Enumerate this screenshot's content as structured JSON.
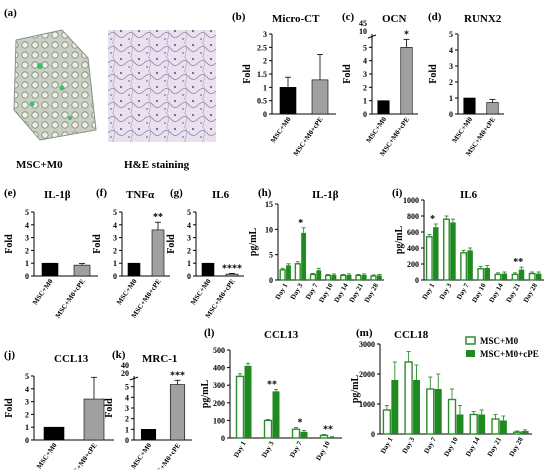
{
  "images": {
    "letter": "(a)",
    "left_caption": "MSC+M0",
    "right_caption": "H&E staining"
  },
  "legend": {
    "items": [
      {
        "label": "MSC+M0",
        "color": "#ffffff",
        "stroke": "#2e8b2e"
      },
      {
        "label": "MSC+M0+cPE",
        "color": "#1f8a1f",
        "stroke": "#1f8a1f"
      }
    ]
  },
  "chart_data": [
    {
      "id": "b",
      "letter": "(b)",
      "type": "bar",
      "title": "Micro-CT",
      "ylabel": "Fold",
      "categories": [
        "MSC+M0",
        "MSC+M0+cPE"
      ],
      "values": [
        1.0,
        1.28
      ],
      "errors": [
        0.38,
        0.95
      ],
      "colors": [
        "#000000",
        "#a0a0a0"
      ],
      "ylim": [
        0,
        3
      ],
      "yticks": [
        0,
        0.5,
        1,
        1.5,
        2,
        2.5,
        3
      ],
      "sig": [
        "",
        ""
      ]
    },
    {
      "id": "c",
      "letter": "(c)",
      "type": "bar",
      "title": "OCN",
      "ylabel": "Fold",
      "categories": [
        "MSC+M0",
        "MSC+M0+cPE"
      ],
      "values": [
        1.0,
        5.0
      ],
      "errors": [
        0,
        0.6
      ],
      "colors": [
        "#000000",
        "#a0a0a0"
      ],
      "ylim": [
        0,
        6
      ],
      "yticks": [
        0,
        1,
        2,
        3,
        4,
        5
      ],
      "break_labels": [
        "45",
        "10"
      ],
      "sig": [
        "",
        "*"
      ]
    },
    {
      "id": "d",
      "letter": "(d)",
      "type": "bar",
      "title": "RUNX2",
      "ylabel": "Fold",
      "categories": [
        "MSC+M0",
        "MSC+M0+cPE"
      ],
      "values": [
        1.0,
        0.72
      ],
      "errors": [
        0,
        0.18
      ],
      "colors": [
        "#000000",
        "#a0a0a0"
      ],
      "ylim": [
        0,
        5
      ],
      "yticks": [
        0,
        1,
        2,
        3,
        4,
        5
      ],
      "sig": [
        "",
        ""
      ]
    },
    {
      "id": "e",
      "letter": "(e)",
      "type": "bar",
      "title": "IL-1β",
      "ylabel": "Fold",
      "categories": [
        "MSC+M0",
        "MSC+M0+cPE"
      ],
      "values": [
        1.0,
        0.85
      ],
      "errors": [
        0,
        0.12
      ],
      "colors": [
        "#000000",
        "#a0a0a0"
      ],
      "ylim": [
        0,
        5
      ],
      "yticks": [
        0,
        1,
        2,
        3,
        4,
        5
      ],
      "sig": [
        "",
        ""
      ]
    },
    {
      "id": "f",
      "letter": "(f)",
      "type": "bar",
      "title": "TNFα",
      "ylabel": "Fold",
      "categories": [
        "MSC+M0",
        "MSC+M0+cPE"
      ],
      "values": [
        1.0,
        3.6
      ],
      "errors": [
        0,
        0.6
      ],
      "colors": [
        "#000000",
        "#a0a0a0"
      ],
      "ylim": [
        0,
        5
      ],
      "yticks": [
        0,
        1,
        2,
        3,
        4,
        5
      ],
      "sig": [
        "",
        "**"
      ]
    },
    {
      "id": "g",
      "letter": "(g)",
      "type": "bar",
      "title": "IL6",
      "ylabel": "Fold",
      "categories": [
        "MSC+M0",
        "MSC+M0+cPE"
      ],
      "values": [
        1.0,
        0.15
      ],
      "errors": [
        0,
        0.05
      ],
      "colors": [
        "#000000",
        "#a0a0a0"
      ],
      "ylim": [
        0,
        5
      ],
      "yticks": [
        0,
        1,
        2,
        3,
        4,
        5
      ],
      "sig": [
        "",
        "****"
      ]
    },
    {
      "id": "h",
      "letter": "(h)",
      "type": "bar",
      "title": "IL-1β",
      "ylabel": "pg/mL",
      "categories": [
        "Day 1",
        "Day 3",
        "Day 7",
        "Day 10",
        "Day 14",
        "Day 21",
        "Day 28"
      ],
      "series": [
        {
          "name": "MSC+M0",
          "values": [
            2.0,
            3.2,
            1.1,
            0.9,
            0.9,
            0.9,
            0.8
          ],
          "errors": [
            0.3,
            0.4,
            0.2,
            0.2,
            0.2,
            0.2,
            0.2
          ]
        },
        {
          "name": "MSC+M0+cPE",
          "values": [
            2.9,
            9.3,
            1.9,
            1.0,
            1.0,
            1.0,
            0.9
          ],
          "errors": [
            0.3,
            1.0,
            0.4,
            0.2,
            0.2,
            0.2,
            0.2
          ]
        }
      ],
      "ylim": [
        0,
        15
      ],
      "yticks": [
        0,
        5,
        10,
        15
      ],
      "sig": [
        "",
        "*",
        "",
        "",
        "",
        "",
        ""
      ]
    },
    {
      "id": "i",
      "letter": "(i)",
      "type": "bar",
      "title": "IL6",
      "ylabel": "pg/mL",
      "categories": [
        "Day 1",
        "Day 3",
        "Day 7",
        "Day 10",
        "Day 14",
        "Day 21",
        "Day 28"
      ],
      "series": [
        {
          "name": "MSC+M0",
          "values": [
            540,
            760,
            340,
            140,
            70,
            70,
            80
          ],
          "errors": [
            30,
            40,
            30,
            30,
            20,
            20,
            20
          ]
        },
        {
          "name": "MSC+M0+cPE",
          "values": [
            660,
            720,
            370,
            150,
            80,
            130,
            80
          ],
          "errors": [
            40,
            40,
            30,
            30,
            20,
            30,
            20
          ]
        }
      ],
      "ylim": [
        0,
        1000
      ],
      "yticks": [
        0,
        200,
        400,
        600,
        800,
        1000
      ],
      "sig": [
        "*",
        "",
        "",
        "",
        "",
        "**",
        ""
      ]
    },
    {
      "id": "j",
      "letter": "(j)",
      "type": "bar",
      "title": "CCL13",
      "ylabel": "Fold",
      "categories": [
        "MSC+M0",
        "MSC+M0+cPE"
      ],
      "values": [
        1.0,
        3.2
      ],
      "errors": [
        0,
        1.7
      ],
      "colors": [
        "#000000",
        "#a0a0a0"
      ],
      "ylim": [
        0,
        5
      ],
      "yticks": [
        0,
        1,
        2,
        3,
        4,
        5
      ],
      "sig": [
        "",
        ""
      ]
    },
    {
      "id": "k",
      "letter": "(k)",
      "type": "bar",
      "title": "MRC-1",
      "ylabel": "Fold",
      "categories": [
        "MSC+M0",
        "MSC+M0+cPE"
      ],
      "values": [
        1.0,
        5.2
      ],
      "errors": [
        0,
        0.4
      ],
      "colors": [
        "#000000",
        "#a0a0a0"
      ],
      "ylim": [
        0,
        6
      ],
      "yticks": [
        0,
        1,
        2,
        3,
        4,
        5
      ],
      "break_labels": [
        "40",
        "20"
      ],
      "sig": [
        "",
        "***"
      ]
    },
    {
      "id": "l",
      "letter": "(l)",
      "type": "bar",
      "title": "CCL13",
      "ylabel": "pg/mL",
      "categories": [
        "Day 1",
        "Day 3",
        "Day 7",
        "Day 10"
      ],
      "series": [
        {
          "name": "MSC+M0",
          "values": [
            350,
            100,
            50,
            15
          ],
          "errors": [
            15,
            5,
            10,
            5
          ]
        },
        {
          "name": "MSC+M0+cPE",
          "values": [
            410,
            265,
            35,
            5
          ],
          "errors": [
            15,
            10,
            8,
            3
          ]
        }
      ],
      "ylim": [
        0,
        500
      ],
      "yticks": [
        0,
        100,
        200,
        300,
        400,
        500
      ],
      "sig": [
        "",
        "**",
        "*",
        "**"
      ]
    },
    {
      "id": "m",
      "letter": "(m)",
      "type": "bar",
      "title": "CCL18",
      "ylabel": "pg/mL",
      "categories": [
        "Day 1",
        "Day 3",
        "Day 7",
        "Day 10",
        "Day 14",
        "Day 21",
        "Day 28"
      ],
      "series": [
        {
          "name": "MSC+M0",
          "values": [
            800,
            2400,
            1500,
            1150,
            650,
            500,
            60
          ],
          "errors": [
            150,
            350,
            400,
            350,
            100,
            150,
            40
          ]
        },
        {
          "name": "MSC+M0+cPE",
          "values": [
            1800,
            1800,
            1500,
            650,
            650,
            450,
            100
          ],
          "errors": [
            600,
            500,
            500,
            300,
            150,
            150,
            40
          ]
        }
      ],
      "ylim": [
        0,
        3000
      ],
      "yticks": [
        0,
        1000,
        2000,
        3000
      ],
      "sig": [
        "",
        "",
        "",
        "",
        "",
        "",
        ""
      ]
    }
  ]
}
